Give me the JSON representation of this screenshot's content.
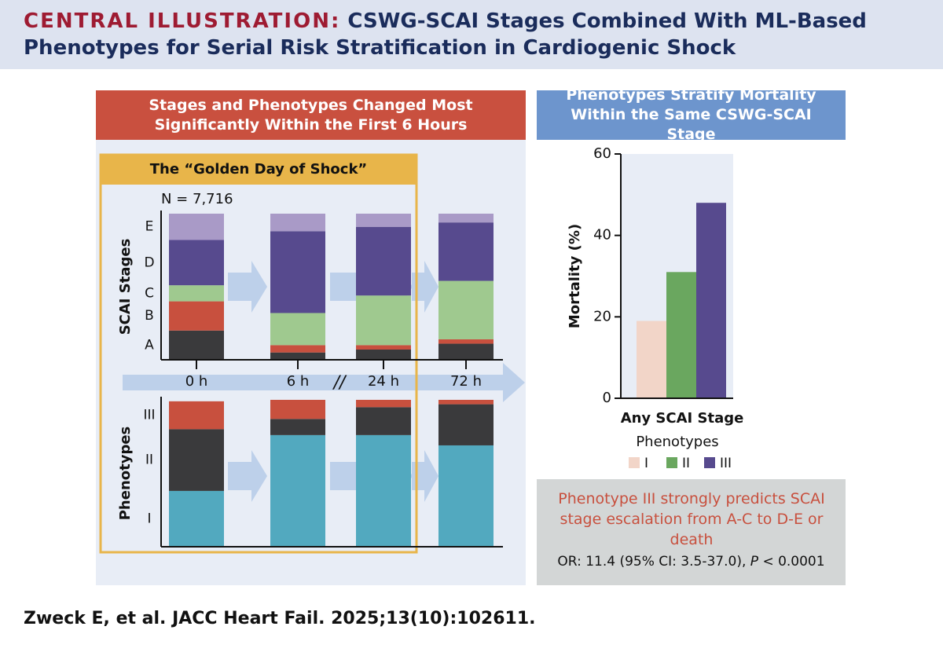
{
  "header": {
    "label": "CENTRAL ILLUSTRATION:",
    "title": "CSWG-SCAI Stages Combined With ML-Based Phenotypes for Serial Risk Stratification in Cardiogenic Shock"
  },
  "left_panel": {
    "heading": "Stages and Phenotypes Changed Most Significantly Within the First 6 Hours",
    "golden_day": "The “Golden Day of Shock”",
    "n_label": "N = 7,716",
    "break_mark": "//"
  },
  "right_panel": {
    "heading": "Phenotypes Stratify Mortality Within the Same CSWG-SCAI Stage",
    "note": "Phenotype III strongly predicts SCAI stage escalation from A-C to D-E or death",
    "stat_prefix": "OR: 11.4 (95% CI: 3.5-37.0),",
    "stat_p": "P",
    "stat_suffix": "< 0.0001"
  },
  "citation": "Zweck E, et al. JACC Heart Fail. 2025;13(10):102611.",
  "chart_data": [
    {
      "type": "stacked-bar",
      "y_label": "SCAI Stages",
      "categories": [
        "0 h",
        "6 h",
        "24 h",
        "72 h"
      ],
      "ylim": [
        0,
        100
      ],
      "series": [
        {
          "name": "A",
          "color": "#3a3a3c",
          "values": [
            20,
            5,
            7,
            11
          ]
        },
        {
          "name": "B",
          "color": "#c8503e",
          "values": [
            20,
            5,
            3,
            3
          ]
        },
        {
          "name": "C",
          "color": "#9fc98f",
          "values": [
            11,
            22,
            34,
            40
          ]
        },
        {
          "name": "D",
          "color": "#574a8e",
          "values": [
            31,
            56,
            47,
            40
          ]
        },
        {
          "name": "E",
          "color": "#a99ac7",
          "values": [
            18,
            12,
            9,
            6
          ]
        }
      ]
    },
    {
      "type": "stacked-bar",
      "y_label": "Phenotypes",
      "ylim": [
        0,
        100
      ],
      "series": [
        {
          "name": "I",
          "color": "#52a9bf",
          "values": [
            38,
            76,
            76,
            69
          ]
        },
        {
          "name": "II",
          "color": "#3a3a3c",
          "values": [
            42,
            11,
            19,
            28
          ]
        },
        {
          "name": "III",
          "color": "#c8503e",
          "values": [
            19,
            13,
            5,
            3
          ]
        }
      ]
    },
    {
      "type": "bar",
      "y_label": "Mortality (%)",
      "categories": [
        "Any SCAI Stage"
      ],
      "legend_title": "Phenotypes",
      "ylim": [
        0,
        60
      ],
      "yticks": [
        0,
        20,
        40,
        60
      ],
      "series": [
        {
          "name": "I",
          "color": "#f2d5c8",
          "values": [
            19
          ]
        },
        {
          "name": "II",
          "color": "#6aa75f",
          "values": [
            31
          ]
        },
        {
          "name": "III",
          "color": "#574a8e",
          "values": [
            48
          ]
        }
      ]
    }
  ]
}
